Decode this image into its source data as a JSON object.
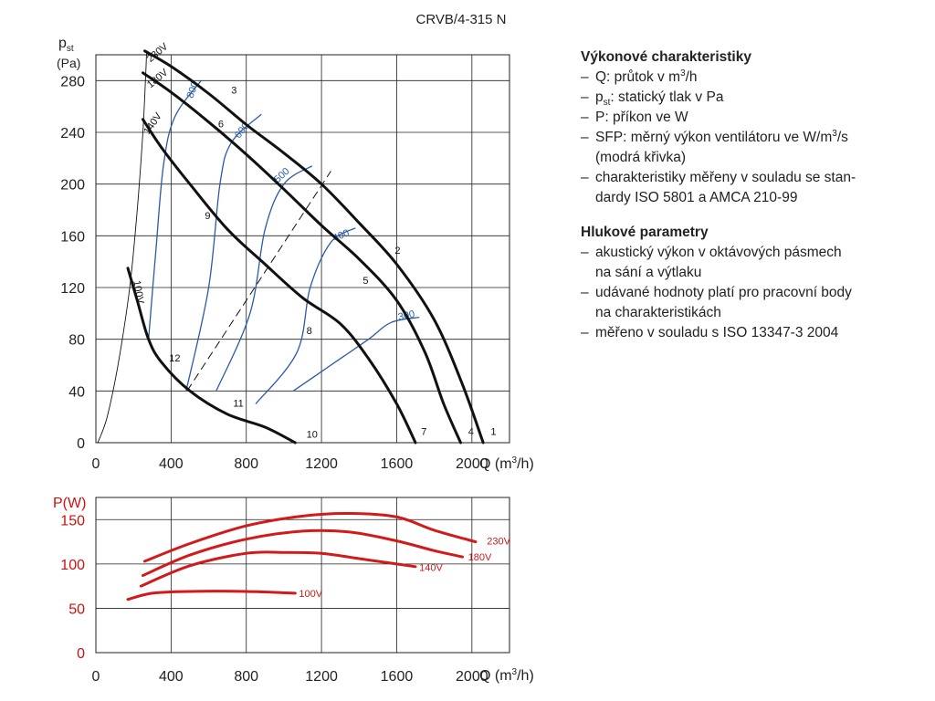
{
  "model_title": "CRVB/4-315 N",
  "colors": {
    "pressure_curve": "#111111",
    "sfp_curve": "#2b5aa8",
    "power_curve": "#d11a1a",
    "grid": "#222222",
    "power_axis_label": "#cc1111"
  },
  "chart_data": [
    {
      "type": "line",
      "name": "pressure",
      "ylabel_main": "p",
      "ylabel_sub": "st",
      "yunit": "(Pa)",
      "xlabel": "Q (m³/h)",
      "xlabel_main": "Q (m",
      "xlabel_sup": "3",
      "xlabel_end": "/h)",
      "xlim": [
        0,
        2200
      ],
      "ylim": [
        0,
        300
      ],
      "x_ticks": [
        0,
        400,
        800,
        1200,
        1600,
        2000
      ],
      "y_ticks": [
        0,
        40,
        80,
        120,
        160,
        200,
        240,
        280
      ],
      "grid": true,
      "series": [
        {
          "name": "230V",
          "points": [
            [
              260,
              303
            ],
            [
              400,
              291
            ],
            [
              600,
              270
            ],
            [
              800,
              246
            ],
            [
              1000,
              224
            ],
            [
              1200,
              200
            ],
            [
              1400,
              170
            ],
            [
              1600,
              138
            ],
            [
              1800,
              95
            ],
            [
              1950,
              45
            ],
            [
              2060,
              0
            ]
          ]
        },
        {
          "name": "180V",
          "points": [
            [
              250,
              286
            ],
            [
              400,
              271
            ],
            [
              600,
              248
            ],
            [
              800,
              223
            ],
            [
              1000,
              196
            ],
            [
              1200,
              168
            ],
            [
              1400,
              142
            ],
            [
              1600,
              110
            ],
            [
              1750,
              70
            ],
            [
              1850,
              30
            ],
            [
              1940,
              0
            ]
          ]
        },
        {
          "name": "140V",
          "points": [
            [
              250,
              250
            ],
            [
              350,
              228
            ],
            [
              500,
              200
            ],
            [
              700,
              165
            ],
            [
              900,
              138
            ],
            [
              1100,
              112
            ],
            [
              1300,
              92
            ],
            [
              1450,
              65
            ],
            [
              1600,
              30
            ],
            [
              1700,
              0
            ]
          ]
        },
        {
          "name": "100V",
          "points": [
            [
              170,
              135
            ],
            [
              220,
              110
            ],
            [
              280,
              80
            ],
            [
              350,
              62
            ],
            [
              500,
              40
            ],
            [
              700,
              22
            ],
            [
              900,
              12
            ],
            [
              1060,
              0
            ]
          ]
        },
        {
          "name": "",
          "points": [
            [
              10,
              0
            ],
            [
              60,
              20
            ],
            [
              120,
              62
            ],
            [
              180,
              120
            ],
            [
              220,
              180
            ],
            [
              250,
              240
            ],
            [
              265,
              285
            ],
            [
              270,
              303
            ]
          ]
        }
      ],
      "dashed_line": [
        [
          485,
          40
        ],
        [
          1250,
          210
        ]
      ],
      "sfp_curves": [
        {
          "label": "800",
          "label_at": [
            530,
            272
          ],
          "label_rot": -70,
          "points": [
            [
              280,
              80
            ],
            [
              320,
              150
            ],
            [
              360,
              215
            ],
            [
              420,
              252
            ],
            [
              560,
              280
            ]
          ]
        },
        {
          "label": "600",
          "label_at": [
            790,
            240
          ],
          "label_rot": -52,
          "points": [
            [
              480,
              40
            ],
            [
              600,
              120
            ],
            [
              660,
              200
            ],
            [
              720,
              232
            ],
            [
              880,
              254
            ]
          ]
        },
        {
          "label": "500",
          "label_at": [
            1000,
            205
          ],
          "label_rot": -42,
          "points": [
            [
              640,
              40
            ],
            [
              820,
              100
            ],
            [
              900,
              165
            ],
            [
              1000,
              200
            ],
            [
              1150,
              214
            ]
          ]
        },
        {
          "label": "400",
          "label_at": [
            1310,
            158
          ],
          "label_rot": -22,
          "points": [
            [
              850,
              30
            ],
            [
              1070,
              70
            ],
            [
              1140,
              120
            ],
            [
              1250,
              155
            ],
            [
              1380,
              166
            ]
          ]
        },
        {
          "label": "300",
          "label_at": [
            1655,
            96
          ],
          "label_rot": -12,
          "points": [
            [
              1050,
              40
            ],
            [
              1250,
              60
            ],
            [
              1450,
              80
            ],
            [
              1570,
              93
            ],
            [
              1720,
              97
            ]
          ]
        }
      ],
      "point_labels": [
        {
          "text": "1",
          "at": [
            2100,
            6
          ]
        },
        {
          "text": "2",
          "at": [
            1590,
            146
          ]
        },
        {
          "text": "3",
          "at": [
            720,
            270
          ]
        },
        {
          "text": "4",
          "at": [
            1980,
            6
          ]
        },
        {
          "text": "5",
          "at": [
            1420,
            123
          ]
        },
        {
          "text": "6",
          "at": [
            650,
            244
          ]
        },
        {
          "text": "7",
          "at": [
            1730,
            6
          ]
        },
        {
          "text": "8",
          "at": [
            1120,
            84
          ]
        },
        {
          "text": "9",
          "at": [
            580,
            173
          ]
        },
        {
          "text": "10",
          "at": [
            1120,
            4
          ]
        },
        {
          "text": "11",
          "at": [
            730,
            28
          ]
        },
        {
          "text": "12",
          "at": [
            390,
            63
          ]
        }
      ],
      "voltage_labels": [
        {
          "text": "230V",
          "at": [
            290,
            294
          ],
          "rot": -40
        },
        {
          "text": "180V",
          "at": [
            290,
            274
          ],
          "rot": -40
        },
        {
          "text": "140V",
          "at": [
            280,
            238
          ],
          "rot": -55
        },
        {
          "text": "100V",
          "at": [
            200,
            125
          ],
          "rot": 80
        }
      ]
    },
    {
      "type": "line",
      "name": "power",
      "ylabel": "P(W)",
      "xlabel": "Q (m³/h)",
      "xlabel_main": "Q (m",
      "xlabel_sup": "3",
      "xlabel_end": "/h)",
      "xlim": [
        0,
        2200
      ],
      "ylim": [
        0,
        175
      ],
      "x_ticks": [
        0,
        400,
        800,
        1200,
        1600,
        2000
      ],
      "y_ticks": [
        0,
        50,
        100,
        150
      ],
      "grid": true,
      "series": [
        {
          "name": "230V",
          "label_at": [
            2080,
            126
          ],
          "points": [
            [
              260,
              103
            ],
            [
              500,
              123
            ],
            [
              800,
              143
            ],
            [
              1100,
              154
            ],
            [
              1350,
              157
            ],
            [
              1600,
              153
            ],
            [
              1800,
              138
            ],
            [
              2020,
              125
            ]
          ]
        },
        {
          "name": "180V",
          "label_at": [
            1980,
            108
          ],
          "points": [
            [
              250,
              87
            ],
            [
              500,
              110
            ],
            [
              800,
              128
            ],
            [
              1100,
              137
            ],
            [
              1350,
              136
            ],
            [
              1600,
              126
            ],
            [
              1800,
              115
            ],
            [
              1950,
              108
            ]
          ]
        },
        {
          "name": "140V",
          "label_at": [
            1720,
            96
          ],
          "points": [
            [
              240,
              75
            ],
            [
              500,
              98
            ],
            [
              800,
              112
            ],
            [
              1000,
              113
            ],
            [
              1200,
              112
            ],
            [
              1400,
              106
            ],
            [
              1600,
              100
            ],
            [
              1700,
              97
            ]
          ]
        },
        {
          "name": "100V",
          "label_at": [
            1080,
            67
          ],
          "points": [
            [
              170,
              60
            ],
            [
              300,
              67
            ],
            [
              500,
              69
            ],
            [
              800,
              69
            ],
            [
              1060,
              67
            ]
          ]
        }
      ]
    }
  ],
  "side_panel": {
    "performance": {
      "title": "Výkonové charakteristiky",
      "items": [
        {
          "main": "Q: průtok v m",
          "sup": "3",
          "end": "/h"
        },
        {
          "main": "p",
          "sub": "st",
          "end": ": statický tlak v Pa"
        },
        {
          "main": "P: příkon ve W"
        },
        {
          "main": "SFP: měrný výkon ventilátoru ve W/m",
          "sup": "3",
          "end": "/s"
        },
        {
          "main": "(modrá křivka)",
          "plain": true
        },
        {
          "main": "charakteristiky měřeny v souladu se stan-"
        },
        {
          "main": "dardy ISO 5801 a AMCA 210-99",
          "plain": true
        }
      ]
    },
    "noise": {
      "title": "Hlukové parametry",
      "items": [
        {
          "main": "akustický výkon v oktávových pásmech"
        },
        {
          "main": "na sání a výtlaku",
          "plain": true
        },
        {
          "main": "udávané hodnoty platí pro pracovní body"
        },
        {
          "main": "na charakteristikách",
          "plain": true
        },
        {
          "main": "měřeno v souladu s ISO 13347-3 2004"
        }
      ]
    }
  }
}
